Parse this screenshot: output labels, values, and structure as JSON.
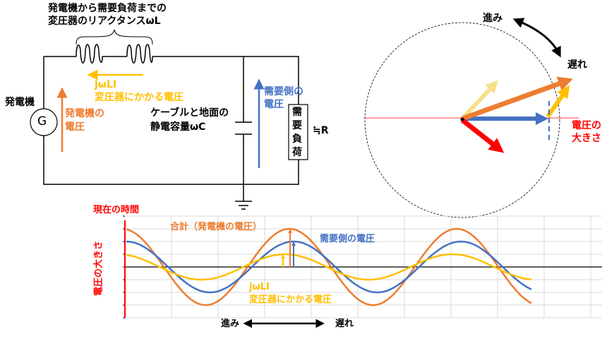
{
  "colors": {
    "generator": "#ed7d31",
    "demand": "#4472c4",
    "transformer": "#ffc000",
    "current": "#ff0000",
    "axis": "#ff0000",
    "light_yellow": "#f5e08a"
  },
  "circuit": {
    "reactance_label_line1": "発電機から需要負荷までの",
    "reactance_label_line2": "変圧器のリアクタンスωL",
    "generator_label": "発電機",
    "generator_symbol": "G",
    "jwli_label": "jωLI",
    "transformer_voltage_label": "変圧器にかかる電圧",
    "generator_voltage_line1": "発電機の",
    "generator_voltage_line2": "電圧",
    "capacitance_line1": "ケーブルと地面の",
    "capacitance_line2": "静電容量ωC",
    "demand_voltage_line1": "需要側の",
    "demand_voltage_line2": "電圧",
    "load_label": [
      "需",
      "要",
      "負",
      "荷"
    ],
    "approx_r": "≒R"
  },
  "phasor": {
    "lead_label": "進み",
    "lag_label": "遅れ",
    "magnitude_line1": "電圧の",
    "magnitude_line2": "大きさ"
  },
  "chart_data": {
    "type": "line",
    "title": "",
    "ylabel": "電圧の大きさ",
    "time_label": "現在の時間",
    "lead_label": "進み",
    "lag_label": "遅れ",
    "grid": true,
    "ylim": [
      -4,
      4
    ],
    "series": [
      {
        "name": "合計（発電機の電圧）",
        "amplitude": 3,
        "color": "#ed7d31"
      },
      {
        "name": "需要側の電圧",
        "amplitude": 2,
        "color": "#4472c4"
      },
      {
        "name": "jωLI 変圧器にかかる電圧",
        "amplitude": 1,
        "color": "#ffc000"
      }
    ],
    "series_label_total": "合計（発電機の電圧）",
    "series_label_demand": "需要側の電圧",
    "series_label_jwli": "jωLI",
    "series_label_transformer": "変圧器にかかる電圧"
  }
}
